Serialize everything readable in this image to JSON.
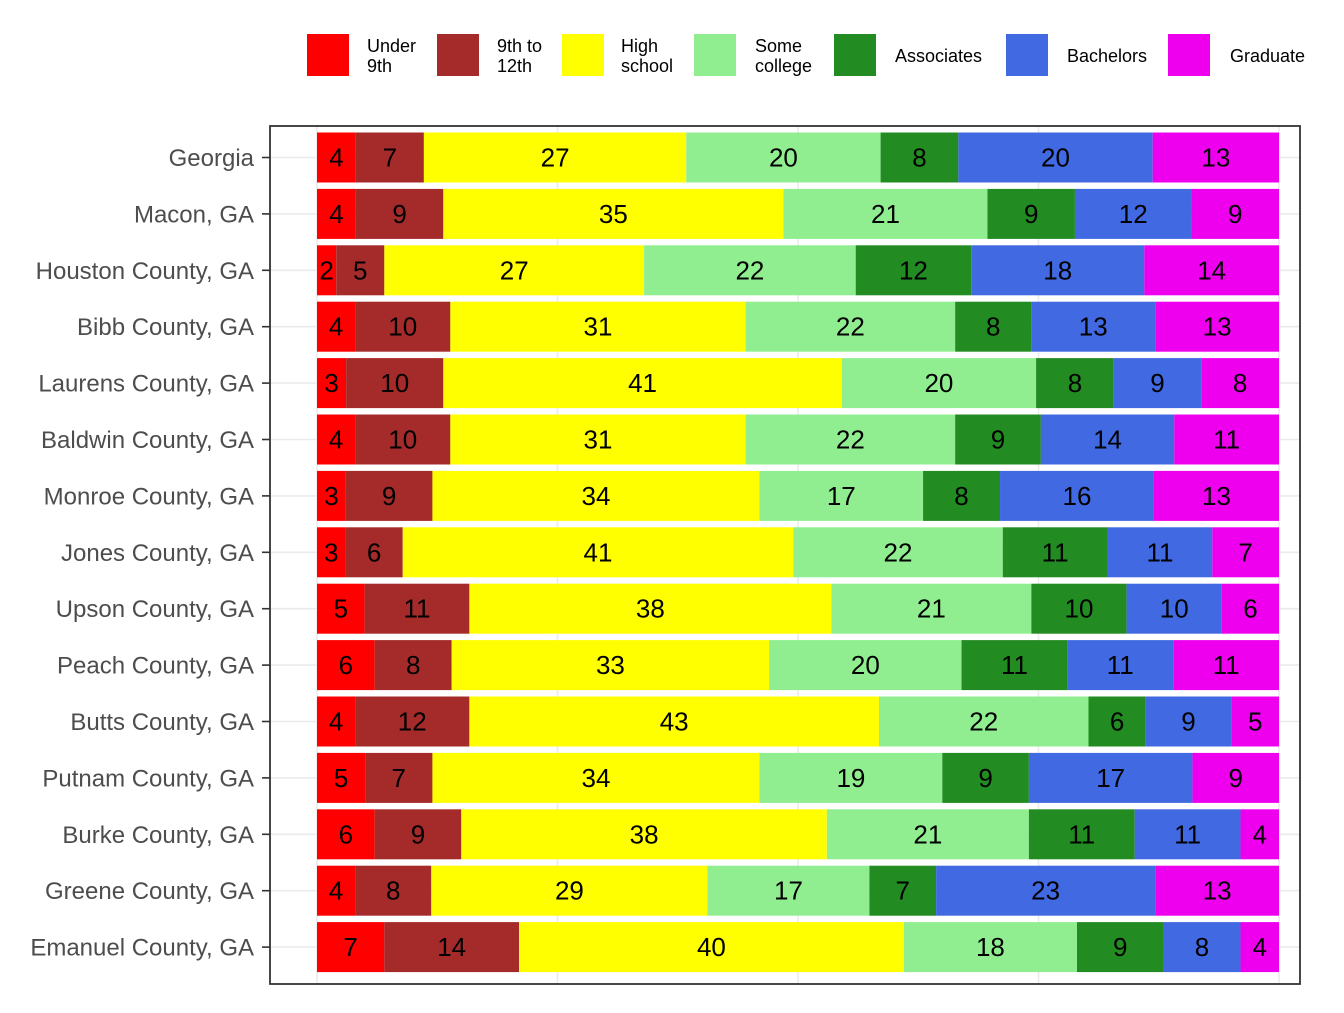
{
  "chart_data": {
    "type": "bar",
    "orientation": "horizontal",
    "stacked": true,
    "normalized": true,
    "title": "",
    "xlabel": "",
    "ylabel": "",
    "grid": true,
    "legend_position": "top-right",
    "categories": [
      "Georgia",
      "Macon, GA",
      "Houston County, GA",
      "Bibb County, GA",
      "Laurens County, GA",
      "Baldwin County, GA",
      "Monroe County, GA",
      "Jones County, GA",
      "Upson County, GA",
      "Peach County, GA",
      "Butts County, GA",
      "Putnam County, GA",
      "Burke County, GA",
      "Greene County, GA",
      "Emanuel County, GA"
    ],
    "series": [
      {
        "name": "Under 9th",
        "legend_lines": [
          "Under",
          "9th"
        ],
        "color": "#ff0000",
        "values": [
          4,
          4,
          2,
          4,
          3,
          4,
          3,
          3,
          5,
          6,
          4,
          5,
          6,
          4,
          7
        ]
      },
      {
        "name": "9th to 12th",
        "legend_lines": [
          "9th to",
          "12th"
        ],
        "color": "#a52a2a",
        "values": [
          7,
          9,
          5,
          10,
          10,
          10,
          9,
          6,
          11,
          8,
          12,
          7,
          9,
          8,
          14
        ]
      },
      {
        "name": "High school",
        "legend_lines": [
          "High",
          "school"
        ],
        "color": "#ffff00",
        "values": [
          27,
          35,
          27,
          31,
          41,
          31,
          34,
          41,
          38,
          33,
          43,
          34,
          38,
          29,
          40
        ]
      },
      {
        "name": "Some college",
        "legend_lines": [
          "Some",
          "college"
        ],
        "color": "#90ee90",
        "values": [
          20,
          21,
          22,
          22,
          20,
          22,
          17,
          22,
          21,
          20,
          22,
          19,
          21,
          17,
          18
        ]
      },
      {
        "name": "Associates",
        "legend_lines": [
          "Associates"
        ],
        "color": "#228b22",
        "values": [
          8,
          9,
          12,
          8,
          8,
          9,
          8,
          11,
          10,
          11,
          6,
          9,
          11,
          7,
          9
        ]
      },
      {
        "name": "Bachelors",
        "legend_lines": [
          "Bachelors"
        ],
        "color": "#4169e1",
        "values": [
          20,
          12,
          18,
          13,
          9,
          14,
          16,
          11,
          10,
          11,
          9,
          17,
          11,
          23,
          8
        ]
      },
      {
        "name": "Graduate",
        "legend_lines": [
          "Graduate"
        ],
        "color": "#ee00ee",
        "values": [
          13,
          9,
          14,
          13,
          8,
          11,
          13,
          7,
          6,
          11,
          5,
          9,
          4,
          13,
          4
        ]
      }
    ]
  }
}
